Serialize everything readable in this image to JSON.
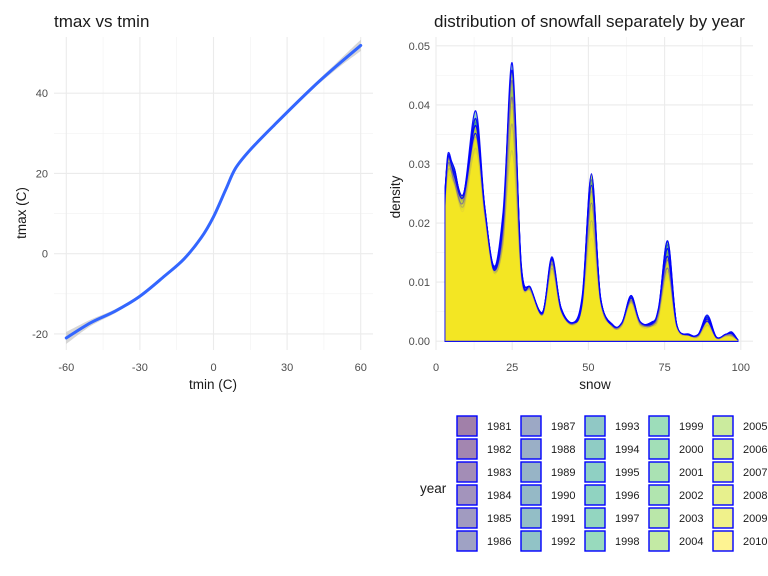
{
  "chart_data": [
    {
      "type": "line",
      "title": "tmax vs tmin",
      "xlabel": "tmin (C)",
      "ylabel": "tmax (C)",
      "xlim": [
        -65,
        65
      ],
      "ylim": [
        -24,
        54
      ],
      "x_ticks": [
        -60,
        -30,
        0,
        30,
        60
      ],
      "y_ticks": [
        -20,
        0,
        20,
        40
      ],
      "grid": true,
      "line_color": "#3366ff",
      "ribbon_color": "#999999",
      "series": [
        {
          "x": [
            -60,
            -50,
            -40,
            -30,
            -20,
            -12,
            -5,
            0,
            5,
            9,
            15,
            25,
            40,
            50,
            60
          ],
          "y": [
            -21,
            -17.2,
            -14.3,
            -10.6,
            -5.6,
            -1.3,
            4,
            9.2,
            16,
            21.3,
            25.9,
            32.2,
            41.2,
            46.7,
            51.9
          ],
          "se": [
            1.5,
            0.8,
            0.5,
            0.4,
            0.4,
            0.4,
            0.4,
            0.4,
            0.4,
            0.4,
            0.4,
            0.4,
            0.5,
            0.8,
            1.4
          ]
        }
      ]
    },
    {
      "type": "area",
      "title": "distribution of snowfall separately by year",
      "xlabel": "snow",
      "ylabel": "density",
      "xlim": [
        0,
        104
      ],
      "ylim": [
        -0.0015,
        0.0515
      ],
      "x_ticks": [
        0,
        25,
        50,
        75,
        100
      ],
      "y_ticks": [
        0,
        0.01,
        0.02,
        0.03,
        0.04,
        0.05
      ],
      "y_tick_labels": [
        "0.00",
        "0.01",
        "0.02",
        "0.03",
        "0.04",
        "0.05"
      ],
      "grid": true,
      "outline_color": "#0000ff",
      "fill_alpha": 0.5,
      "density_base": {
        "x": [
          3,
          4,
          6,
          9,
          13,
          16,
          19,
          22,
          25,
          28,
          31,
          35,
          38,
          41,
          45,
          48,
          51,
          54,
          58,
          61,
          64,
          67,
          71,
          73,
          76,
          79,
          83,
          86,
          89,
          92,
          95,
          97,
          99
        ],
        "low_y": [
          0.0222,
          0.0274,
          0.0254,
          0.0218,
          0.0305,
          0.0205,
          0.0112,
          0.0148,
          0.0285,
          0.0102,
          0.0082,
          0.0042,
          0.0112,
          0.0048,
          0.0026,
          0.0052,
          0.0168,
          0.0062,
          0.0022,
          0.0024,
          0.0062,
          0.0024,
          0.0022,
          0.0034,
          0.0092,
          0.0022,
          0.0008,
          0.0006,
          0.0022,
          0.0004,
          0.0007,
          0.0006,
          0.0002
        ],
        "high_y": [
          0.0262,
          0.0322,
          0.0298,
          0.0252,
          0.039,
          0.023,
          0.0128,
          0.022,
          0.0485,
          0.0128,
          0.0092,
          0.005,
          0.0145,
          0.0058,
          0.0032,
          0.0078,
          0.03,
          0.0074,
          0.0028,
          0.0032,
          0.0078,
          0.0034,
          0.0034,
          0.0058,
          0.018,
          0.0028,
          0.0012,
          0.0012,
          0.0045,
          0.0007,
          0.0012,
          0.0016,
          0.0002
        ]
      },
      "legend": {
        "title": "year",
        "position": "bottom",
        "columns": 5,
        "entries": [
          {
            "label": "1981",
            "color": "#440154"
          },
          {
            "label": "1982",
            "color": "#470e61"
          },
          {
            "label": "1983",
            "color": "#481c6e"
          },
          {
            "label": "1984",
            "color": "#472a7a"
          },
          {
            "label": "1985",
            "color": "#443882"
          },
          {
            "label": "1986",
            "color": "#3f4689"
          },
          {
            "label": "1987",
            "color": "#3a528b"
          },
          {
            "label": "1988",
            "color": "#355f8d"
          },
          {
            "label": "1989",
            "color": "#30698e"
          },
          {
            "label": "1990",
            "color": "#2c738e"
          },
          {
            "label": "1991",
            "color": "#287d8e"
          },
          {
            "label": "1992",
            "color": "#24878e"
          },
          {
            "label": "1993",
            "color": "#21918c"
          },
          {
            "label": "1994",
            "color": "#1f9a8a"
          },
          {
            "label": "1995",
            "color": "#1fa287"
          },
          {
            "label": "1996",
            "color": "#22a884"
          },
          {
            "label": "1997",
            "color": "#27ad81"
          },
          {
            "label": "1998",
            "color": "#31b57b"
          },
          {
            "label": "1999",
            "color": "#3bbb75"
          },
          {
            "label": "2000",
            "color": "#46c06f"
          },
          {
            "label": "2001",
            "color": "#56c667"
          },
          {
            "label": "2002",
            "color": "#63cb5f"
          },
          {
            "label": "2003",
            "color": "#75d054"
          },
          {
            "label": "2004",
            "color": "#87d549"
          },
          {
            "label": "2005",
            "color": "#98d83e"
          },
          {
            "label": "2006",
            "color": "#abdc32"
          },
          {
            "label": "2007",
            "color": "#bddf26"
          },
          {
            "label": "2008",
            "color": "#d0e11c"
          },
          {
            "label": "2009",
            "color": "#e2e418"
          },
          {
            "label": "2010",
            "color": "#fde725"
          }
        ]
      }
    }
  ]
}
